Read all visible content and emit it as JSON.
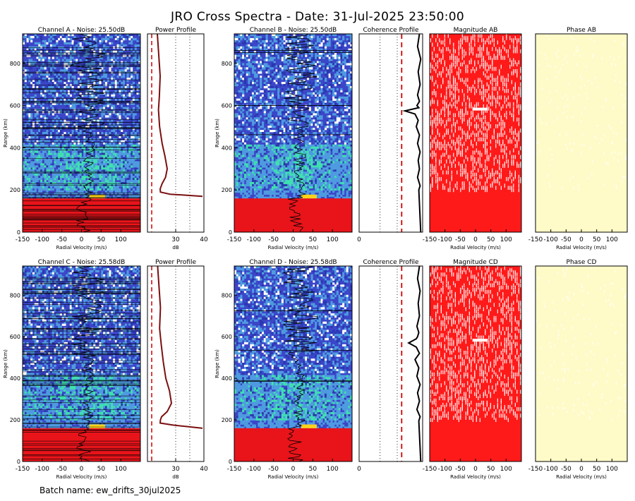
{
  "title": "JRO Cross Spectra - Date: 31-Jul-2025 23:50:00",
  "batch_name": "Batch name: ew_drifts_30jul2025",
  "colors": {
    "spectra_bg": "#3b46c8",
    "spectra_mid": "#4f9be0",
    "spectra_green": "#3ee0b0",
    "clutter_red": "#e8141a",
    "magnitude_red": "#ff1a1a",
    "phase_bg": "#fffbc8",
    "profile_line": "#7a1010",
    "coherence_ref": "#cc0000"
  },
  "chart_data": [
    {
      "type": "heatmap",
      "title": "Channel A - Noise: 25.50dB",
      "xlabel": "Radial Velocity (m/s)",
      "ylabel": "Range (km)",
      "xlim": [
        -150,
        150
      ],
      "ylim": [
        0,
        940
      ],
      "xticks": [
        -150,
        -100,
        -50,
        0,
        50,
        100
      ],
      "yticks": [
        0,
        200,
        400,
        600,
        800
      ]
    },
    {
      "type": "line",
      "title": "Power Profile",
      "xlabel": "dB",
      "xlim": [
        20,
        40
      ],
      "ylim": [
        0,
        940
      ],
      "xticks": [
        30,
        40
      ],
      "series": [
        {
          "x": [
            23.5,
            24.0,
            24.5,
            24.2,
            23.9,
            24.3,
            25.2,
            26.2,
            27.0,
            26.4,
            25.2,
            24.5,
            24.6,
            28.0,
            34.0,
            39.5
          ],
          "y": [
            940,
            840,
            740,
            640,
            580,
            500,
            420,
            360,
            300,
            260,
            230,
            205,
            190,
            180,
            175,
            170
          ]
        }
      ]
    },
    {
      "type": "heatmap",
      "title": "Channel B - Noise: 25.50dB",
      "xlabel": "Radial Velocity (m/s)",
      "ylabel": "Range (km)",
      "xlim": [
        -150,
        150
      ],
      "ylim": [
        0,
        940
      ],
      "xticks": [
        -150,
        -100,
        -50,
        0,
        50,
        100
      ],
      "yticks": [
        0,
        200,
        400,
        600,
        800
      ]
    },
    {
      "type": "line",
      "title": "Coherence Profile",
      "xlim": [
        0,
        1
      ],
      "ylim": [
        0,
        940
      ],
      "xticks": [
        0
      ],
      "series": [
        {
          "x": [
            0.95,
            0.92,
            0.97,
            0.93,
            0.96,
            0.92,
            0.95,
            0.91,
            0.94,
            0.72,
            0.88,
            0.93,
            0.9,
            0.95,
            0.92,
            0.96,
            0.93,
            0.95,
            0.92,
            0.96,
            0.94,
            0.97
          ],
          "y": [
            940,
            880,
            820,
            760,
            700,
            650,
            620,
            600,
            590,
            575,
            560,
            530,
            500,
            460,
            420,
            380,
            340,
            300,
            260,
            220,
            200,
            0
          ]
        }
      ]
    },
    {
      "type": "heatmap",
      "title": "Magnitude AB",
      "xlabel": "Radial Velocity (m/s)",
      "xlim": [
        -150,
        150
      ],
      "ylim": [
        0,
        940
      ],
      "xticks": [
        -150,
        -100,
        -50,
        0,
        50,
        100
      ]
    },
    {
      "type": "heatmap",
      "title": "Phase AB",
      "xlabel": "Radial Velocity (m/s)",
      "xlim": [
        -150,
        150
      ],
      "ylim": [
        0,
        940
      ],
      "xticks": [
        -150,
        -100,
        -50,
        0,
        50,
        100
      ]
    },
    {
      "type": "heatmap",
      "title": "Channel C - Noise: 25.58dB",
      "xlabel": "Radial Velocity (m/s)",
      "ylabel": "Range (km)",
      "xlim": [
        -150,
        150
      ],
      "ylim": [
        0,
        940
      ],
      "xticks": [
        -150,
        -100,
        -50,
        0,
        50,
        100
      ],
      "yticks": [
        0,
        200,
        400,
        600,
        800
      ]
    },
    {
      "type": "line",
      "title": "Power Profile",
      "xlabel": "dB",
      "xlim": [
        20,
        40
      ],
      "ylim": [
        0,
        940
      ],
      "xticks": [
        30,
        40
      ],
      "series": [
        {
          "x": [
            23.6,
            24.1,
            24.6,
            24.3,
            24.9,
            25.6,
            26.5,
            27.8,
            28.5,
            27.0,
            25.0,
            24.6,
            24.5,
            29.0,
            34.0,
            39.5
          ],
          "y": [
            940,
            840,
            740,
            640,
            560,
            480,
            400,
            340,
            280,
            240,
            215,
            200,
            185,
            175,
            168,
            160
          ]
        }
      ]
    },
    {
      "type": "heatmap",
      "title": "Channel D - Noise: 25.58dB",
      "xlabel": "Radial Velocity (m/s)",
      "ylabel": "Range (km)",
      "xlim": [
        -150,
        150
      ],
      "ylim": [
        0,
        940
      ],
      "xticks": [
        -150,
        -100,
        -50,
        0,
        50,
        100
      ],
      "yticks": [
        0,
        200,
        400,
        600,
        800
      ]
    },
    {
      "type": "line",
      "title": "Coherence Profile",
      "xlim": [
        0,
        1
      ],
      "ylim": [
        0,
        940
      ],
      "xticks": [
        0
      ],
      "series": [
        {
          "x": [
            0.95,
            0.92,
            0.96,
            0.93,
            0.95,
            0.91,
            0.94,
            0.92,
            0.9,
            0.78,
            0.9,
            0.95,
            0.88,
            0.94,
            0.91,
            0.96,
            0.92,
            0.95,
            0.91,
            0.96,
            0.94,
            0.97
          ],
          "y": [
            940,
            880,
            820,
            760,
            700,
            650,
            620,
            600,
            590,
            570,
            550,
            520,
            490,
            450,
            410,
            370,
            330,
            290,
            250,
            215,
            195,
            0
          ]
        }
      ]
    },
    {
      "type": "heatmap",
      "title": "Magnitude CD",
      "xlabel": "Radial Velocity (m/s)",
      "xlim": [
        -150,
        150
      ],
      "ylim": [
        0,
        940
      ],
      "xticks": [
        -150,
        -100,
        -50,
        0,
        50,
        100
      ]
    },
    {
      "type": "heatmap",
      "title": "Phase CD",
      "xlabel": "Radial Velocity (m/s)",
      "xlim": [
        -150,
        150
      ],
      "ylim": [
        0,
        940
      ],
      "xticks": [
        -150,
        -100,
        -50,
        0,
        50,
        100
      ]
    }
  ]
}
